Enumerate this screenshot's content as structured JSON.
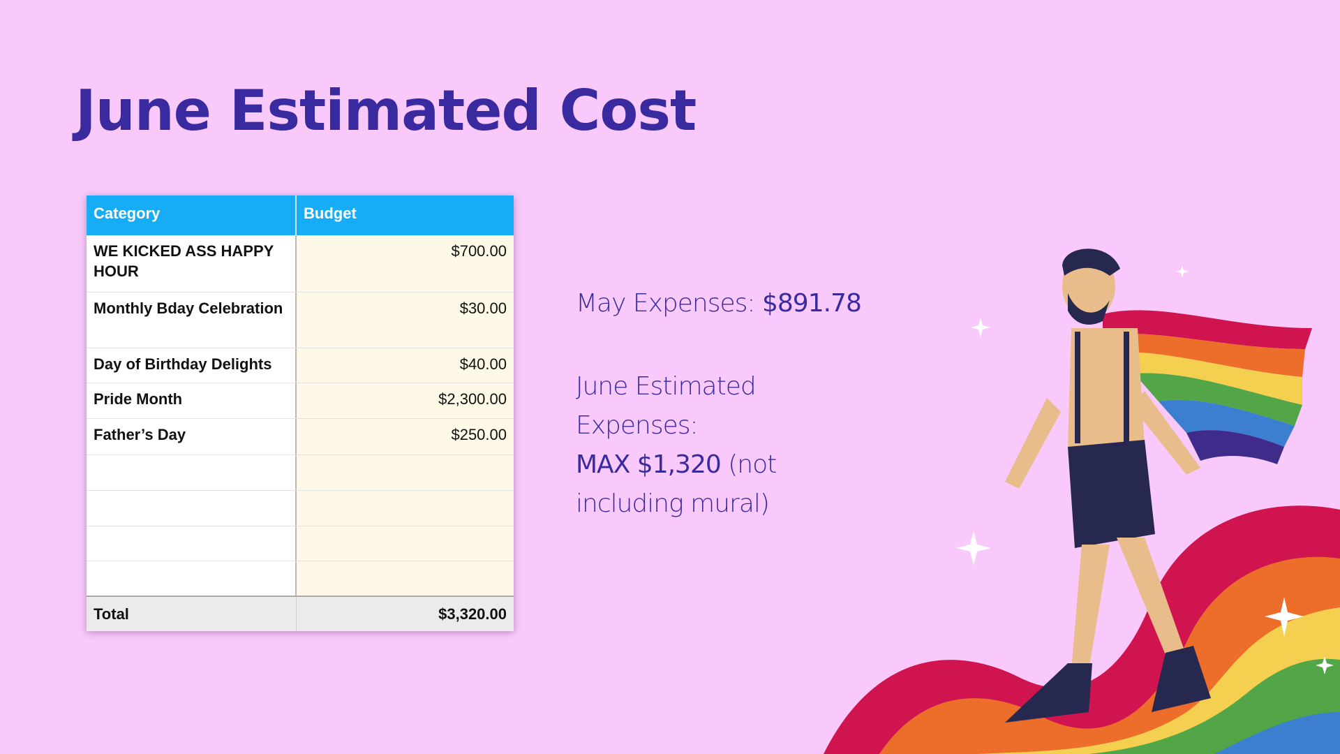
{
  "title": "June Estimated Cost",
  "table": {
    "headers": [
      "Category",
      "Budget"
    ],
    "rows": [
      {
        "category": "WE KICKED ASS HAPPY HOUR",
        "budget": "$700.00"
      },
      {
        "category": "Monthly Bday Celebration",
        "budget": "$30.00"
      },
      {
        "category": "Day of Birthday Delights",
        "budget": "$40.00"
      },
      {
        "category": "Pride Month",
        "budget": "$2,300.00"
      },
      {
        "category": "Father’s Day",
        "budget": "$250.00"
      },
      {
        "category": "",
        "budget": ""
      },
      {
        "category": "",
        "budget": ""
      },
      {
        "category": "",
        "budget": ""
      },
      {
        "category": "",
        "budget": ""
      }
    ],
    "total_label": "Total",
    "total_value": "$3,320.00"
  },
  "summary": {
    "may_label": "May Expenses:",
    "may_value": "$891.78",
    "june_label": "June Estimated Expenses:",
    "june_value": "MAX $1,320",
    "june_note": "(not including mural)"
  },
  "colors": {
    "background": "#f8c9fa",
    "title": "#3a2aa0",
    "header": "#16acf6",
    "rainbow": [
      "#d0144f",
      "#ec6e2a",
      "#f4cf50",
      "#52a648",
      "#3c7fd0"
    ]
  }
}
